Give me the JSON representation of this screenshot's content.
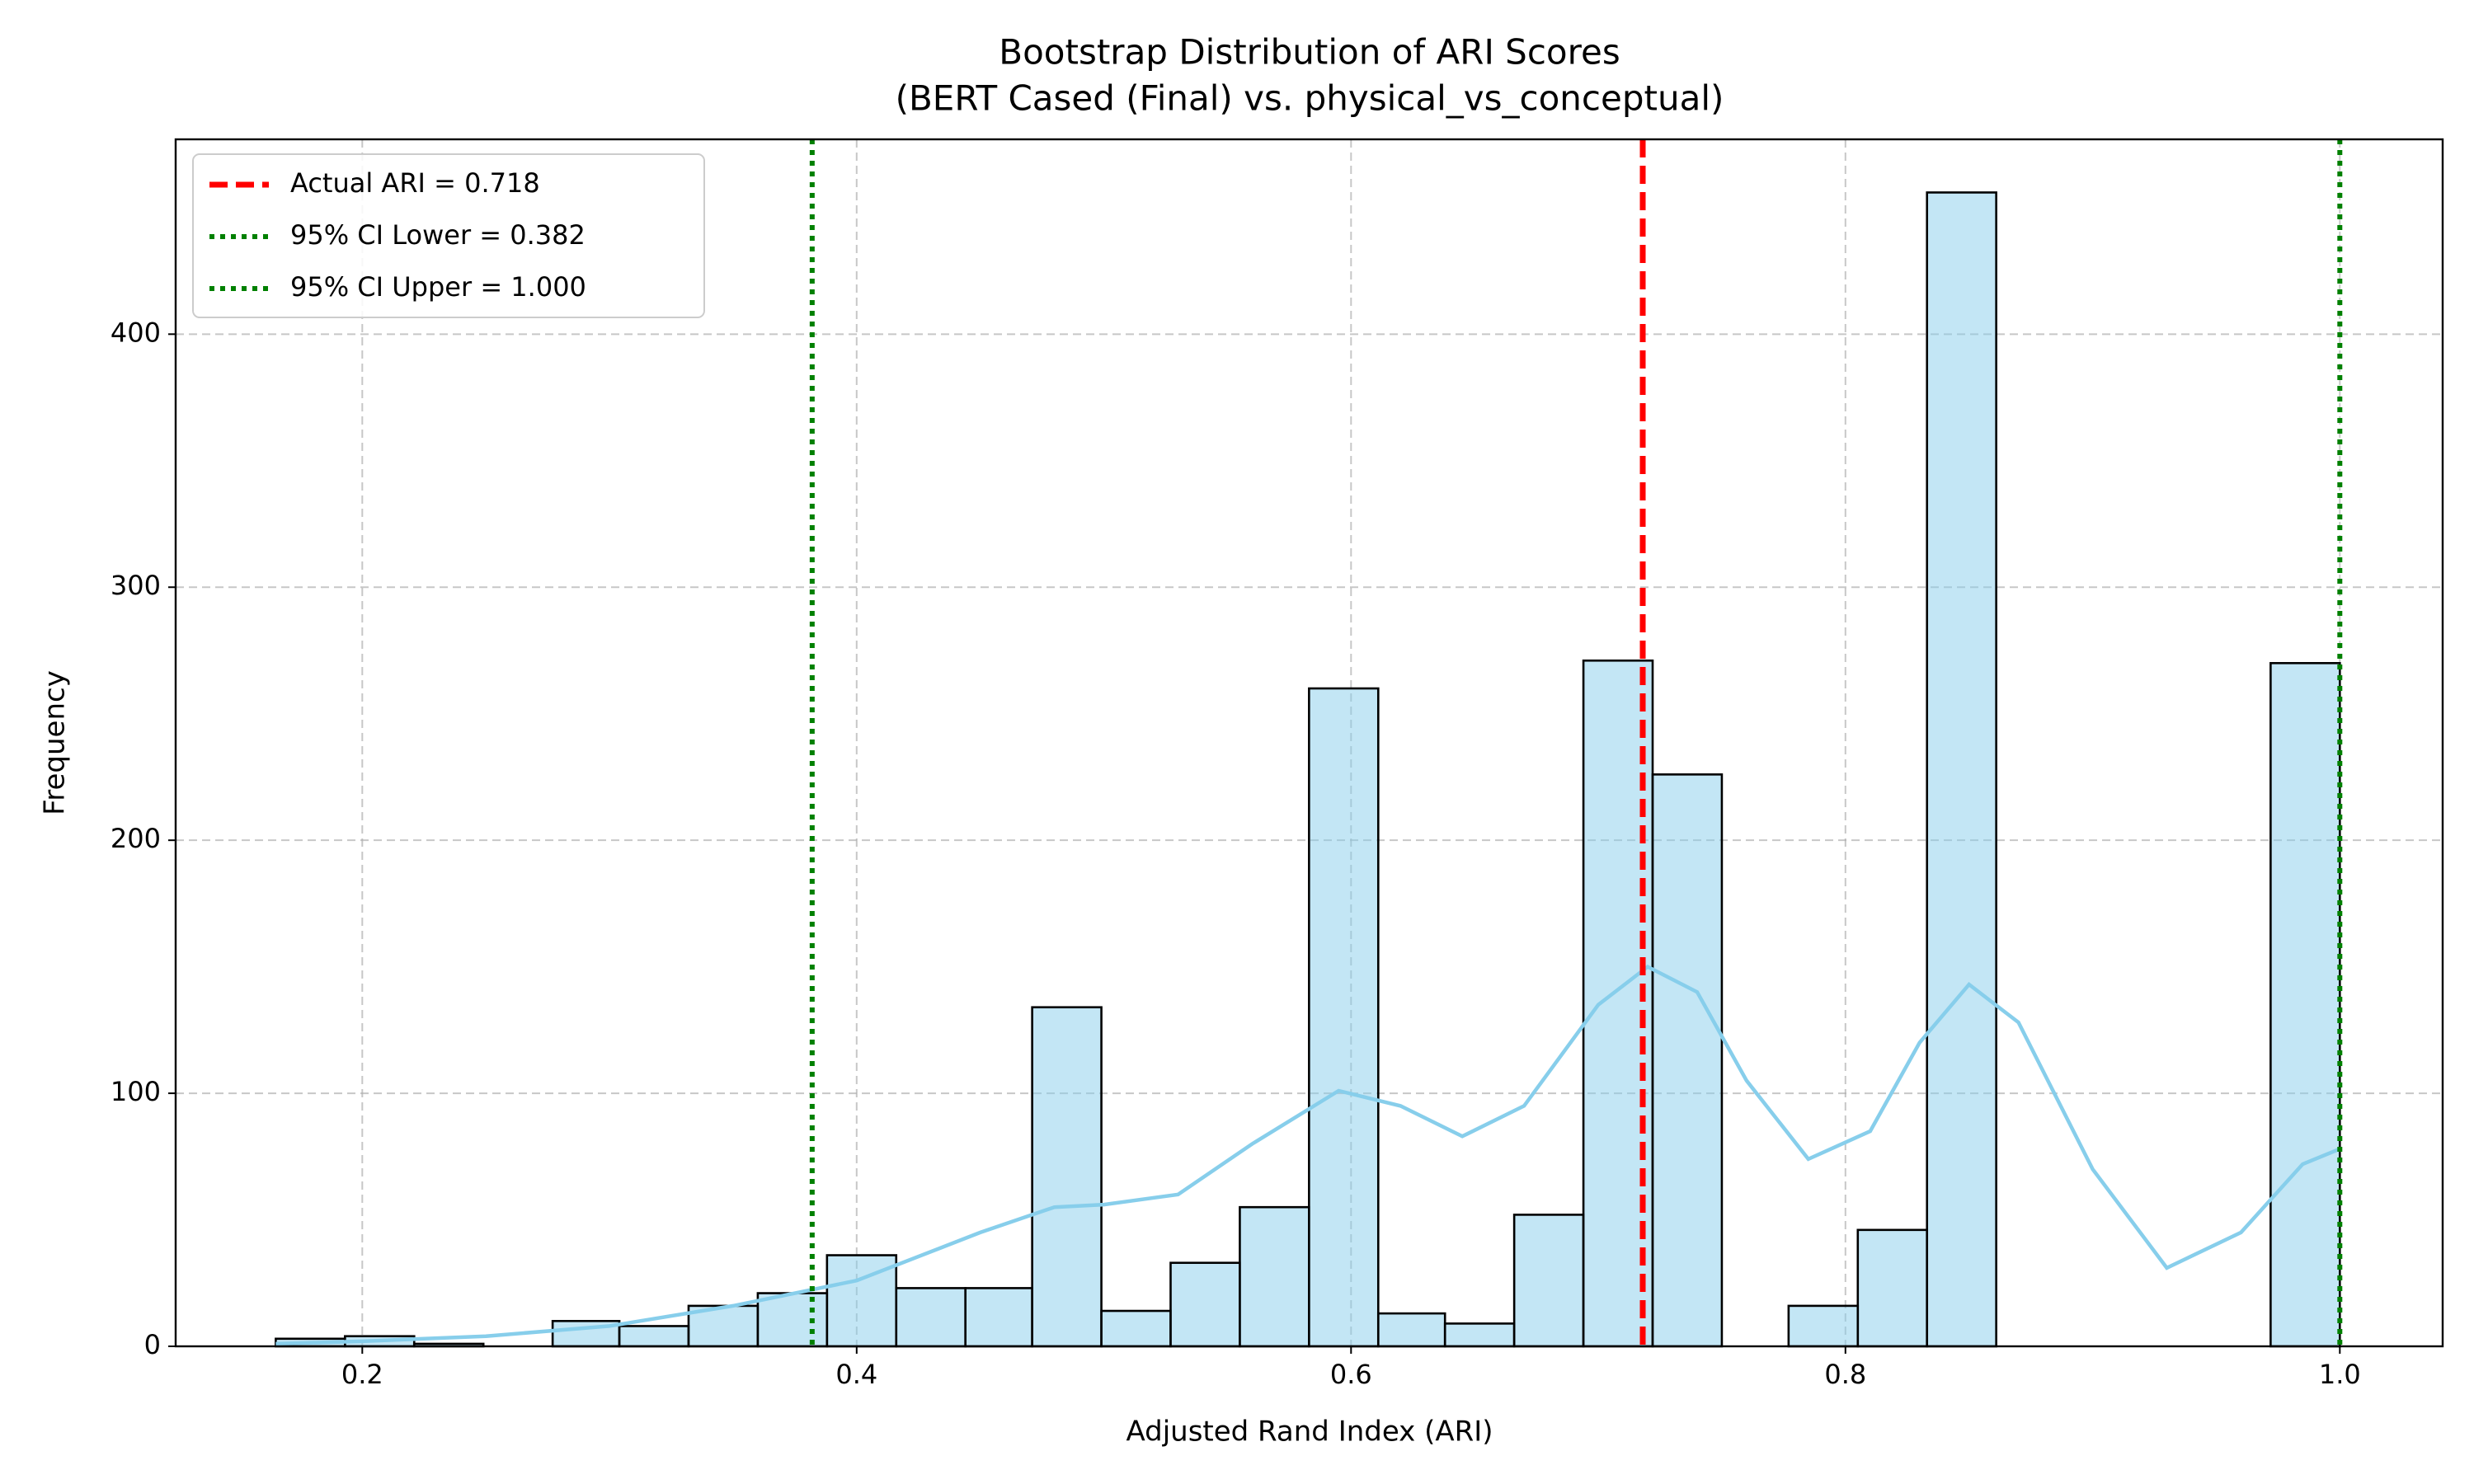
{
  "chart_data": {
    "type": "histogram",
    "title": [
      "Bootstrap Distribution of ARI Scores",
      "(BERT Cased (Final) vs. physical_vs_conceptual)"
    ],
    "xlabel": "Adjusted Rand Index (ARI)",
    "ylabel": "Frequency",
    "bins": [
      0.165,
      0.193,
      0.221,
      0.249,
      0.277,
      0.304,
      0.332,
      0.36,
      0.388,
      0.416,
      0.444,
      0.471,
      0.499,
      0.527,
      0.555,
      0.583,
      0.611,
      0.638,
      0.666,
      0.694,
      0.722,
      0.75,
      0.777,
      0.805,
      0.833,
      0.861,
      0.889,
      0.917,
      0.944,
      0.972,
      1.0
    ],
    "values": [
      3,
      4,
      1,
      0,
      10,
      8,
      16,
      21,
      36,
      23,
      23,
      134,
      14,
      33,
      55,
      260,
      13,
      9,
      52,
      271,
      226,
      0,
      16,
      46,
      456,
      0,
      0,
      0,
      0,
      270
    ],
    "color": "#87ceeb",
    "bar_opacity": 0.5,
    "edgecolor": "#000000",
    "kde": {
      "color": "#87ceeb",
      "x": [
        0.165,
        0.2,
        0.25,
        0.3,
        0.35,
        0.4,
        0.45,
        0.48,
        0.5,
        0.53,
        0.56,
        0.595,
        0.62,
        0.645,
        0.67,
        0.7,
        0.72,
        0.74,
        0.76,
        0.785,
        0.81,
        0.83,
        0.85,
        0.87,
        0.9,
        0.93,
        0.96,
        0.985,
        1.0
      ],
      "y": [
        1,
        2,
        4,
        8,
        16,
        26,
        45,
        55,
        56,
        60,
        80,
        101,
        95,
        83,
        95,
        135,
        150,
        140,
        105,
        74,
        85,
        120,
        143,
        128,
        70,
        31,
        45,
        72,
        78
      ]
    },
    "lines": [
      {
        "name": "Actual ARI = 0.718",
        "value": 0.718,
        "color": "#ff0000",
        "style": "dashed"
      },
      {
        "name": "95% CI Lower = 0.382",
        "value": 0.382,
        "color": "#008000",
        "style": "dotted"
      },
      {
        "name": "95% CI Upper = 1.000",
        "value": 1.0,
        "color": "#008000",
        "style": "dotted"
      }
    ],
    "xlim": [
      0.1245,
      1.0416
    ],
    "ylim": [
      0,
      477
    ],
    "xticks": [
      0.2,
      0.4,
      0.6,
      0.8,
      {
        "value": 1.0,
        "label": "1.0"
      }
    ],
    "yticks": [
      0,
      100,
      200,
      300,
      400
    ],
    "grid": true,
    "legend": "upper left"
  }
}
